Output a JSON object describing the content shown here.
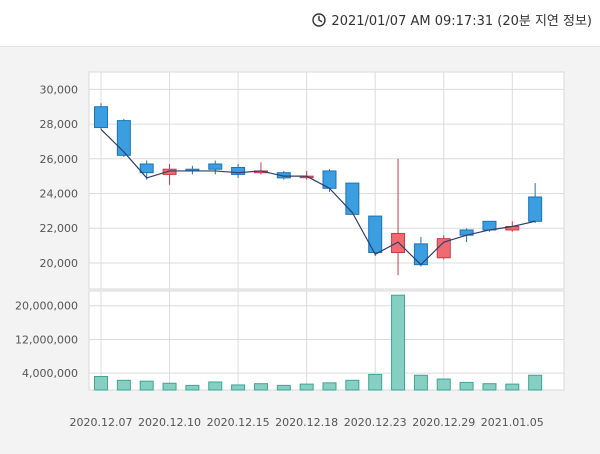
{
  "header": {
    "timestamp": "2021/01/07 AM 09:17:31 (20분 지연 정보)",
    "icon": "clock-icon"
  },
  "colors": {
    "up": "#ee6b72",
    "up_stroke": "#c63c46",
    "down": "#3a9ee0",
    "down_stroke": "#1c73b5",
    "volume": "#86cfc3",
    "volume_stroke": "#3fa495",
    "line": "#2f3f6a",
    "grid": "#dcdcdc"
  },
  "chart_data": {
    "type": "candlestick",
    "price_axis": {
      "ylim": [
        18500,
        31000
      ],
      "ticks": [
        20000,
        22000,
        24000,
        26000,
        28000,
        30000
      ],
      "tick_labels": [
        "20,000",
        "22,000",
        "24,000",
        "26,000",
        "28,000",
        "30,000"
      ]
    },
    "volume_axis": {
      "ylim": [
        0,
        23500000
      ],
      "ticks": [
        4000000,
        12000000,
        20000000
      ],
      "tick_labels": [
        "4,000,000",
        "12,000,000",
        "20,000,000"
      ]
    },
    "x_labels": [
      "2020.12.07",
      "2020.12.10",
      "2020.12.15",
      "2020.12.18",
      "2020.12.23",
      "2020.12.29",
      "2021.01.05"
    ],
    "x_label_index": [
      0,
      3,
      6,
      9,
      12,
      15,
      18
    ],
    "candles": [
      {
        "open": 29000,
        "high": 29200,
        "low": 27700,
        "close": 27800
      },
      {
        "open": 28200,
        "high": 28300,
        "low": 26100,
        "close": 26200
      },
      {
        "open": 25700,
        "high": 25900,
        "low": 24800,
        "close": 25200
      },
      {
        "open": 25100,
        "high": 25700,
        "low": 24500,
        "close": 25400
      },
      {
        "open": 25400,
        "high": 25600,
        "low": 25100,
        "close": 25300
      },
      {
        "open": 25700,
        "high": 25900,
        "low": 25100,
        "close": 25400
      },
      {
        "open": 25500,
        "high": 25700,
        "low": 24900,
        "close": 25100
      },
      {
        "open": 25200,
        "high": 25800,
        "low": 25100,
        "close": 25300
      },
      {
        "open": 25200,
        "high": 25300,
        "low": 24800,
        "close": 24900
      },
      {
        "open": 25000,
        "high": 25300,
        "low": 24800,
        "close": 25000
      },
      {
        "open": 25300,
        "high": 25400,
        "low": 24100,
        "close": 24300
      },
      {
        "open": 24600,
        "high": 24600,
        "low": 22800,
        "close": 22800
      },
      {
        "open": 22700,
        "high": 22700,
        "low": 20400,
        "close": 20600
      },
      {
        "open": 20600,
        "high": 26000,
        "low": 19300,
        "close": 21700
      },
      {
        "open": 21100,
        "high": 21500,
        "low": 19800,
        "close": 19900
      },
      {
        "open": 20300,
        "high": 21600,
        "low": 20200,
        "close": 21400
      },
      {
        "open": 21900,
        "high": 22000,
        "low": 21200,
        "close": 21600
      },
      {
        "open": 22400,
        "high": 22400,
        "low": 21800,
        "close": 21900
      },
      {
        "open": 21900,
        "high": 22400,
        "low": 21800,
        "close": 22100
      },
      {
        "open": 23800,
        "high": 24600,
        "low": 22300,
        "close": 22400
      }
    ],
    "closing_line": [
      27700,
      26400,
      24900,
      25300,
      25300,
      25300,
      25200,
      25300,
      25000,
      25000,
      24300,
      22900,
      20500,
      21200,
      19900,
      21200,
      21600,
      21900,
      22100,
      22400
    ],
    "volume": [
      3200000,
      2300000,
      2100000,
      1600000,
      1100000,
      1900000,
      1200000,
      1500000,
      1100000,
      1400000,
      1700000,
      2300000,
      3700000,
      22500000,
      3500000,
      2600000,
      1800000,
      1500000,
      1400000,
      3500000
    ]
  }
}
